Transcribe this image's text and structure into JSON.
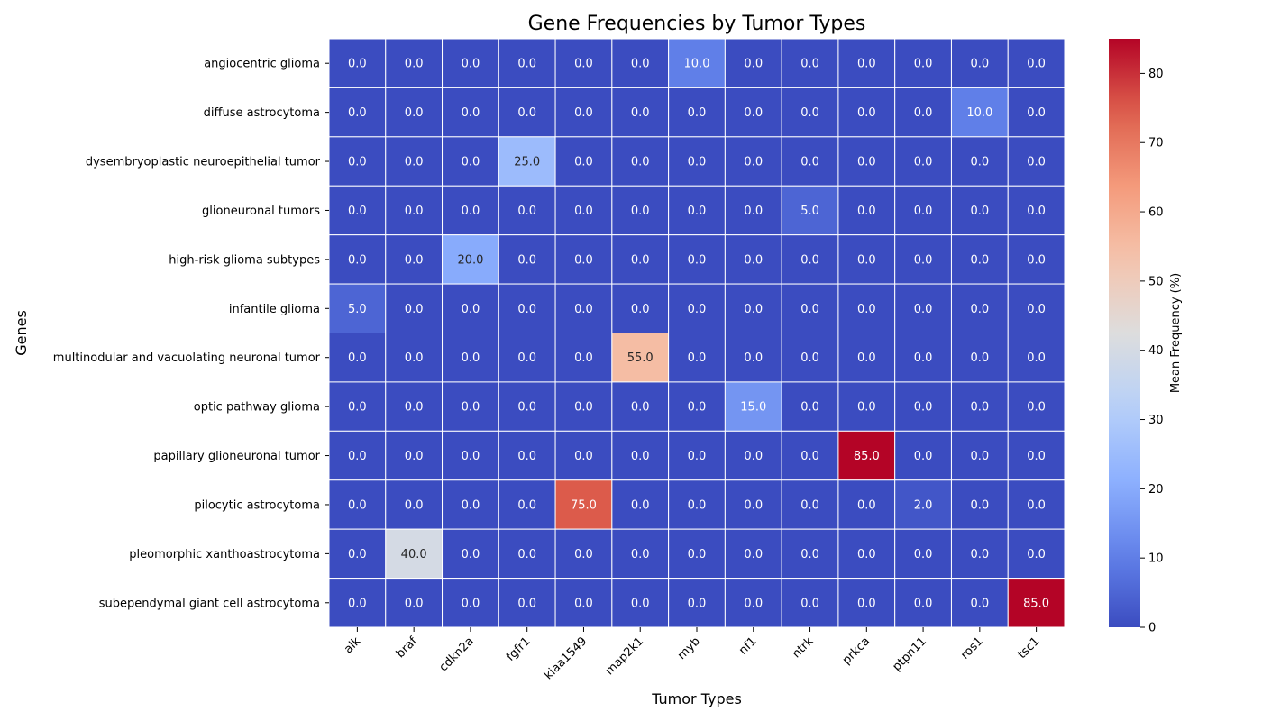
{
  "chart_data": {
    "type": "heatmap",
    "title": "Gene Frequencies by Tumor Types",
    "xlabel": "Tumor Types",
    "ylabel": "Genes",
    "colorbar_label": "Mean Frequency (%)",
    "colormap": "coolwarm",
    "vmin": 0,
    "vmax": 85,
    "colorbar_ticks": [
      0,
      10,
      20,
      30,
      40,
      50,
      60,
      70,
      80
    ],
    "x_categories": [
      "alk",
      "braf",
      "cdkn2a",
      "fgfr1",
      "kiaa1549",
      "map2k1",
      "myb",
      "nf1",
      "ntrk",
      "prkca",
      "ptpn11",
      "ros1",
      "tsc1"
    ],
    "y_categories": [
      "angiocentric glioma",
      "diffuse astrocytoma",
      "dysembryoplastic neuroepithelial tumor",
      "glioneuronal tumors",
      "high-risk glioma subtypes",
      "infantile glioma",
      "multinodular and vacuolating neuronal tumor",
      "optic pathway glioma",
      "papillary glioneuronal tumor",
      "pilocytic astrocytoma",
      "pleomorphic xanthoastrocytoma",
      "subependymal giant cell astrocytoma"
    ],
    "values": [
      [
        0,
        0,
        0,
        0,
        0,
        0,
        10,
        0,
        0,
        0,
        0,
        0,
        0
      ],
      [
        0,
        0,
        0,
        0,
        0,
        0,
        0,
        0,
        0,
        0,
        0,
        10,
        0
      ],
      [
        0,
        0,
        0,
        25,
        0,
        0,
        0,
        0,
        0,
        0,
        0,
        0,
        0
      ],
      [
        0,
        0,
        0,
        0,
        0,
        0,
        0,
        0,
        5,
        0,
        0,
        0,
        0
      ],
      [
        0,
        0,
        20,
        0,
        0,
        0,
        0,
        0,
        0,
        0,
        0,
        0,
        0
      ],
      [
        5,
        0,
        0,
        0,
        0,
        0,
        0,
        0,
        0,
        0,
        0,
        0,
        0
      ],
      [
        0,
        0,
        0,
        0,
        0,
        55,
        0,
        0,
        0,
        0,
        0,
        0,
        0
      ],
      [
        0,
        0,
        0,
        0,
        0,
        0,
        0,
        15,
        0,
        0,
        0,
        0,
        0
      ],
      [
        0,
        0,
        0,
        0,
        0,
        0,
        0,
        0,
        0,
        85,
        0,
        0,
        0
      ],
      [
        0,
        0,
        0,
        0,
        75,
        0,
        0,
        0,
        0,
        0,
        2,
        0,
        0
      ],
      [
        0,
        40,
        0,
        0,
        0,
        0,
        0,
        0,
        0,
        0,
        0,
        0,
        0
      ],
      [
        0,
        0,
        0,
        0,
        0,
        0,
        0,
        0,
        0,
        0,
        0,
        0,
        85
      ]
    ],
    "value_format_decimals": 1,
    "gridlines": false,
    "cell_borders": "white"
  }
}
